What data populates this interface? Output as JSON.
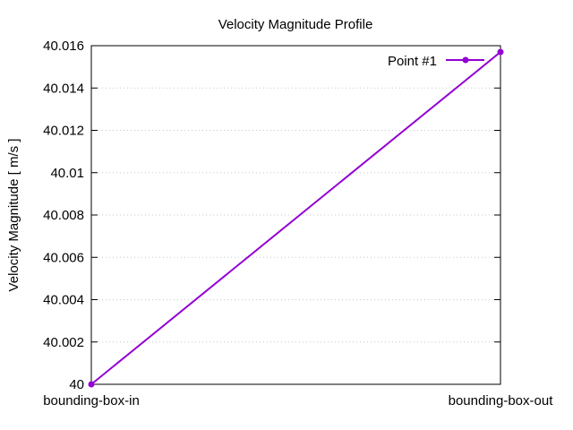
{
  "chart_data": {
    "type": "line",
    "title": "Velocity Magnitude Profile",
    "xlabel": "",
    "ylabel": "Velocity Magnitude [ m/s ]",
    "categories": [
      "bounding-box-in",
      "bounding-box-out"
    ],
    "series": [
      {
        "name": "Point #1",
        "values": [
          40.0,
          40.0157
        ]
      }
    ],
    "ylim": [
      40,
      40.016
    ],
    "yticks": [
      "40",
      "40.002",
      "40.004",
      "40.006",
      "40.008",
      "40.01",
      "40.012",
      "40.014",
      "40.016"
    ],
    "grid": "horizontal dotted",
    "legend": "top-right",
    "colors": {
      "series": "#9400d3",
      "grid": "#c8c8c8",
      "frame": "#000000"
    }
  }
}
